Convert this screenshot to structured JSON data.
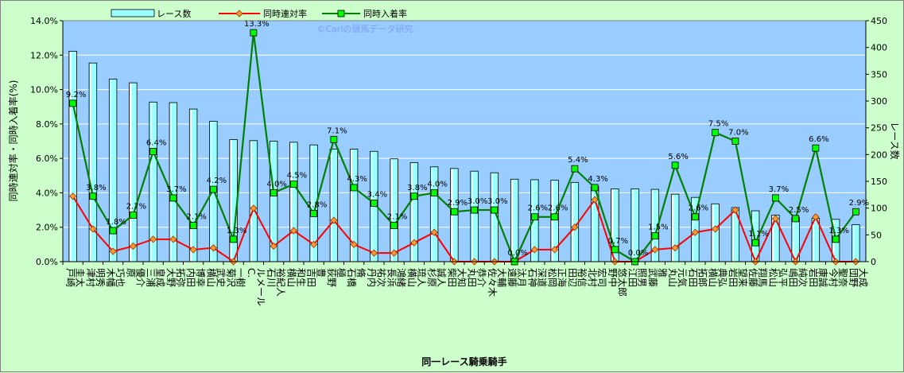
{
  "chart_data": {
    "type": "bar",
    "title": "",
    "watermark": "©Cariの競馬データ研究",
    "xlabel": "同一レース騎乗騎手",
    "ylabel_left": "同時連対率・同時入着率(%)",
    "ylabel_right": "レース数",
    "y_left_lim": [
      0,
      14
    ],
    "y_left_ticks": [
      "0.0%",
      "2.0%",
      "4.0%",
      "6.0%",
      "8.0%",
      "10.0%",
      "12.0%",
      "14.0%"
    ],
    "y_right_lim": [
      0,
      450
    ],
    "y_right_ticks": [
      "0",
      "50",
      "100",
      "150",
      "200",
      "250",
      "300",
      "350",
      "400",
      "450"
    ],
    "legend_position": "top",
    "grid": true,
    "categories": [
      [
        "戸崎",
        "圭太"
      ],
      [
        "津村",
        "明秀"
      ],
      [
        "木幡",
        "巧也"
      ],
      [
        "原",
        "優介"
      ],
      [
        "三浦",
        "皇成"
      ],
      [
        "大野",
        "拓弥"
      ],
      [
        "内田",
        "博幸"
      ],
      [
        "横山",
        "武史"
      ],
      [
        "菊沢",
        "一樹"
      ],
      [
        "C.",
        "ルメール"
      ],
      [
        "石川",
        "裕紀人"
      ],
      [
        "横山",
        "和生"
      ],
      [
        "吉田",
        "豊"
      ],
      [
        "荻野",
        "極"
      ],
      [
        "石橋",
        "脩"
      ],
      [
        "丹内",
        "祐次"
      ],
      [
        "長浜",
        "鴻緒"
      ],
      [
        "横山",
        "琉人"
      ],
      [
        "杉原",
        "誠人"
      ],
      [
        "柴田",
        "大知"
      ],
      [
        "丸田",
        "恭介"
      ],
      [
        "佐々木",
        "大輔"
      ],
      [
        "遠藤",
        "汰月"
      ],
      [
        "石神",
        "深道"
      ],
      [
        "松岡",
        "正海"
      ],
      [
        "田辺",
        "裕信"
      ],
      [
        "北村",
        "宏司"
      ],
      [
        "野中",
        "悠太郎"
      ],
      [
        "江田",
        "照男"
      ],
      [
        "武藤",
        "雅"
      ],
      [
        "丸山",
        "元気"
      ],
      [
        "石田",
        "拓郎"
      ],
      [
        "横山",
        "典弘"
      ],
      [
        "岩田",
        "望来"
      ],
      [
        "佐藤",
        "翔馬"
      ],
      [
        "松山",
        "弘平"
      ],
      [
        "嶋田",
        "純次"
      ],
      [
        "岩田",
        "康誠"
      ],
      [
        "今村",
        "聖奈"
      ],
      [
        "団野",
        "大成"
      ]
    ],
    "series": [
      {
        "name": "レース数",
        "kind": "bar",
        "color": "#99ffff",
        "values": [
          393,
          371,
          341,
          334,
          298,
          297,
          285,
          262,
          228,
          226,
          225,
          223,
          218,
          210,
          210,
          206,
          192,
          185,
          177,
          174,
          169,
          166,
          154,
          153,
          152,
          148,
          140,
          136,
          136,
          135,
          126,
          120,
          108,
          101,
          95,
          87,
          83,
          81,
          79,
          69
        ]
      },
      {
        "name": "同時連対率",
        "kind": "line",
        "color": "#ff0000",
        "values": [
          3.8,
          1.9,
          0.6,
          0.9,
          1.3,
          1.3,
          0.7,
          0.8,
          0.0,
          3.1,
          0.9,
          1.8,
          1.0,
          2.4,
          1.0,
          0.5,
          0.5,
          1.1,
          1.7,
          0.0,
          0.0,
          0.0,
          0.0,
          0.7,
          0.7,
          2.0,
          3.6,
          0.0,
          0.0,
          0.7,
          0.8,
          1.7,
          1.9,
          3.0,
          0.0,
          2.5,
          0.0,
          2.6,
          0.0,
          0.0
        ]
      },
      {
        "name": "同時入着率",
        "kind": "line",
        "color": "#008000",
        "values": [
          9.2,
          3.8,
          1.8,
          2.7,
          6.4,
          3.7,
          2.1,
          4.2,
          1.3,
          13.3,
          4.0,
          4.5,
          2.8,
          7.1,
          4.3,
          3.4,
          2.1,
          3.8,
          4.0,
          2.9,
          3.0,
          3.0,
          0.0,
          2.6,
          2.6,
          5.4,
          4.3,
          0.7,
          0.0,
          1.5,
          5.6,
          2.6,
          7.5,
          7.0,
          1.1,
          3.7,
          2.5,
          6.6,
          1.3,
          2.9
        ]
      }
    ],
    "line_labels": [
      "9.2%",
      "3.8%",
      "1.8%",
      "2.7%",
      "6.4%",
      "3.7%",
      "2.1%",
      "4.2%",
      "1.3%",
      "13.3%",
      "4.0%",
      "4.5%",
      "2.8%",
      "7.1%",
      "4.3%",
      "3.4%",
      "2.1%",
      "3.8%",
      "4.0%",
      "2.9%",
      "3.0%",
      "3.0%",
      "0.0%",
      "2.6%",
      "2.6%",
      "5.4%",
      "4.3%",
      "0.7%",
      "0.0%",
      "1.5%",
      "5.6%",
      "2.6%",
      "7.5%",
      "7.0%",
      "1.1%",
      "3.7%",
      "2.5%",
      "6.6%",
      "1.3%",
      "2.9%"
    ]
  }
}
